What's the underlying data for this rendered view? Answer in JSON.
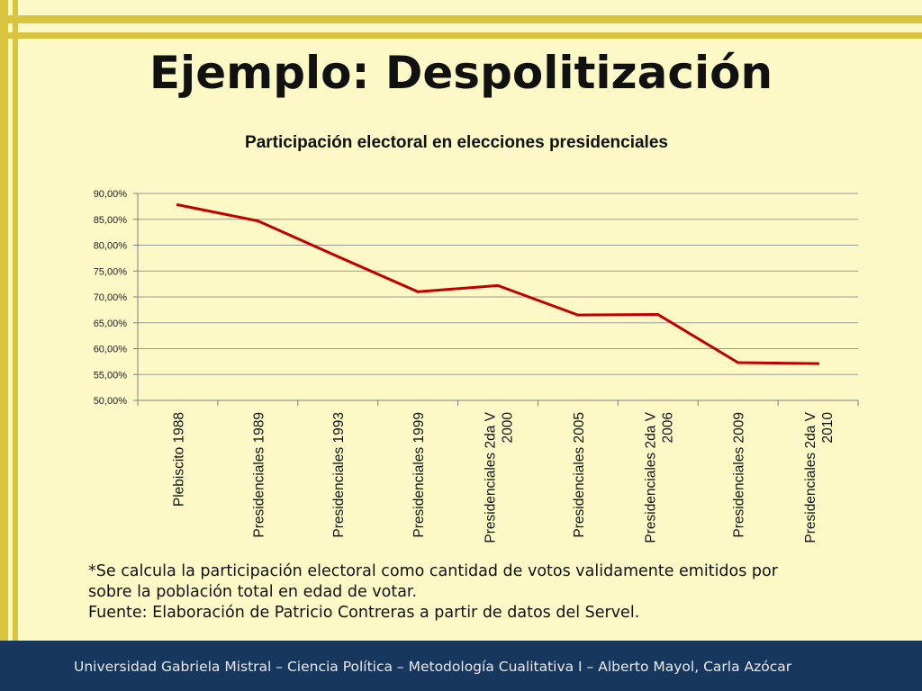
{
  "slide": {
    "title": "Ejemplo: Despolitización",
    "notes": [
      "*Se calcula la participación electoral como cantidad de votos validamente emitidos por",
      "sobre la población total en edad de votar.",
      "Fuente: Elaboración de Patricio Contreras a partir de datos del Servel."
    ],
    "footer": "Universidad Gabriela Mistral – Ciencia Política – Metodología Cualitativa I – Alberto Mayol, Carla Azócar"
  },
  "colors": {
    "background": "#fcf9c6",
    "accent": "#d9c43f",
    "footer": "#17375e",
    "line": "#c00000"
  },
  "chart_data": {
    "type": "line",
    "title": "Participación electoral en elecciones presidenciales",
    "categories": [
      [
        "Plebiscito 1988"
      ],
      [
        "Presidenciales 1989"
      ],
      [
        "Presidenciales 1993"
      ],
      [
        "Presidenciales 1999"
      ],
      [
        "Presidenciales 2da V",
        "2000"
      ],
      [
        "Presidenciales 2005"
      ],
      [
        "Presidenciales 2da V",
        "2006"
      ],
      [
        "Presidenciales 2009"
      ],
      [
        "Presidenciales 2da V",
        "2010"
      ]
    ],
    "values": [
      87.8,
      84.7,
      77.8,
      71.0,
      72.2,
      66.5,
      66.6,
      57.3,
      57.1
    ],
    "ylim": [
      50,
      90
    ],
    "yticks": [
      50,
      55,
      60,
      65,
      70,
      75,
      80,
      85,
      90
    ],
    "yticklabels": [
      "50,00%",
      "55,00%",
      "60,00%",
      "65,00%",
      "70,00%",
      "75,00%",
      "80,00%",
      "85,00%",
      "90,00%"
    ],
    "grid": true,
    "legend": false
  }
}
